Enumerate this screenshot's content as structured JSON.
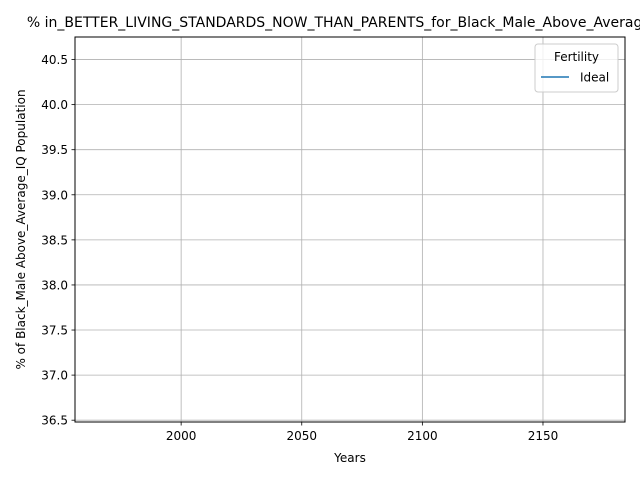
{
  "chart_data": {
    "type": "line",
    "title": "% in_BETTER_LIVING_STANDARDS_NOW_THAN_PARENTS_for_Black_Male_Above_Average_IQ",
    "xlabel": "Years",
    "ylabel": "% of Black_Male Above_Average_IQ Population",
    "xlim": [
      1956,
      2184
    ],
    "ylim": [
      36.48,
      40.75
    ],
    "x_ticks": [
      2000,
      2050,
      2100,
      2150
    ],
    "x_tick_labels": [
      "2000",
      "2050",
      "2100",
      "2150"
    ],
    "y_ticks": [
      36.5,
      37.0,
      37.5,
      38.0,
      38.5,
      39.0,
      39.5,
      40.0,
      40.5
    ],
    "y_tick_labels": [
      "36.5",
      "37.0",
      "37.5",
      "38.0",
      "38.5",
      "39.0",
      "39.5",
      "40.0",
      "40.5"
    ],
    "grid": true,
    "legend": {
      "title": "Fertility",
      "placement": "top-right",
      "entries": [
        {
          "name": "Ideal",
          "color": "#1f77b4"
        }
      ]
    },
    "series": [
      {
        "name": "Ideal",
        "color": "#1f77b4",
        "x": [],
        "y": []
      }
    ]
  }
}
